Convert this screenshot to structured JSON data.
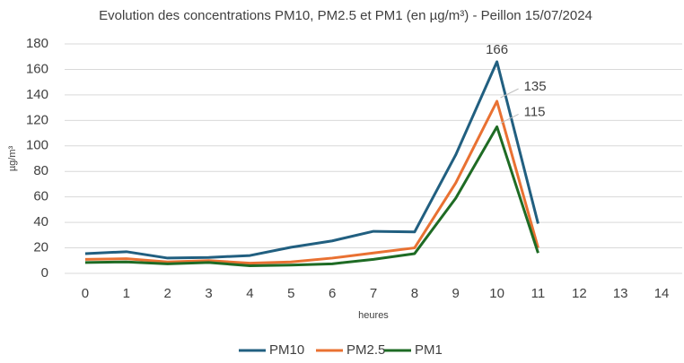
{
  "chart_data": {
    "type": "line",
    "title": "Evolution des concentrations PM10, PM2.5 et PM1 (en µg/m³) - Peillon  15/07/2024",
    "y_label": "µg/m³",
    "x_label": "heures",
    "categories": [
      "0",
      "1",
      "2",
      "3",
      "4",
      "5",
      "6",
      "7",
      "8",
      "9",
      "10",
      "11",
      "12",
      "13",
      "14"
    ],
    "series": [
      {
        "name": "PM10",
        "color": "#215f80",
        "values": [
          15.5,
          17,
          12,
          12.5,
          14,
          20.5,
          25.5,
          33,
          32.5,
          93,
          166,
          39,
          null,
          null,
          null
        ],
        "value_labels": [
          null,
          null,
          null,
          null,
          null,
          null,
          null,
          null,
          null,
          null,
          "166",
          null,
          null,
          null,
          null
        ]
      },
      {
        "name": "PM2.5",
        "color": "#e97132",
        "values": [
          11,
          11.5,
          9,
          10,
          8,
          9,
          12,
          16,
          20,
          71,
          135,
          20,
          null,
          null,
          null
        ],
        "value_labels": [
          null,
          null,
          null,
          null,
          null,
          null,
          null,
          null,
          null,
          null,
          "135",
          null,
          null,
          null,
          null
        ]
      },
      {
        "name": "PM1",
        "color": "#1e6b24",
        "values": [
          8.5,
          9,
          7.5,
          8.5,
          6,
          6.5,
          7.5,
          11,
          15.5,
          59,
          115,
          16,
          null,
          null,
          null
        ],
        "value_labels": [
          null,
          null,
          null,
          null,
          null,
          null,
          null,
          null,
          null,
          null,
          "115",
          null,
          null,
          null,
          null
        ]
      }
    ],
    "ylim": [
      0,
      180
    ],
    "yticks": [
      0,
      20,
      40,
      60,
      80,
      100,
      120,
      140,
      160,
      180
    ],
    "grid": true,
    "legend": "bottom"
  }
}
